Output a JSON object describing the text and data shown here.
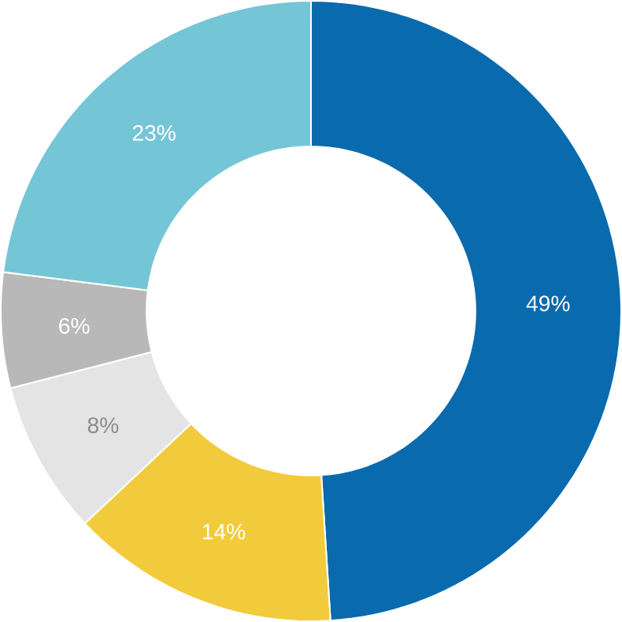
{
  "chart_data": {
    "type": "donut",
    "categories": [
      null,
      null,
      null,
      null,
      null
    ],
    "values": [
      49,
      14,
      8,
      6,
      23
    ],
    "colors": [
      "#0a6aae",
      "#f2cb3d",
      "#e4e4e4",
      "#b8b8b8",
      "#74c6d6"
    ],
    "value_labels": [
      "49%",
      "14%",
      "8%",
      "6%",
      "23%"
    ]
  }
}
